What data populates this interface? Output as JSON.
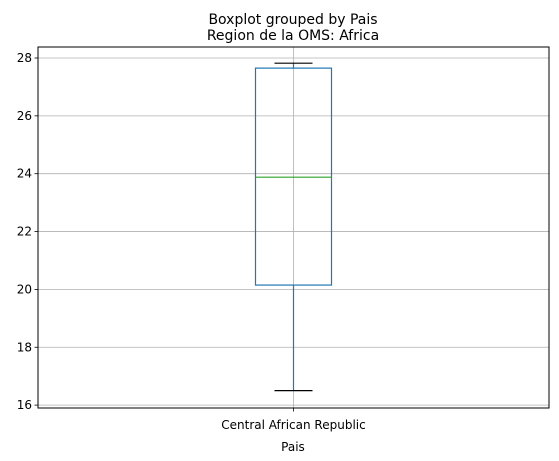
{
  "chart_data": {
    "type": "boxplot",
    "suptitle": "Boxplot grouped by Pais",
    "title": "Region de la OMS: Africa",
    "xlabel": "Pais",
    "ylabel": "",
    "categories": [
      "Central African Republic"
    ],
    "boxes": [
      {
        "category": "Central African Republic",
        "whisker_low": 16.5,
        "q1": 20.15,
        "median": 23.88,
        "q3": 27.65,
        "whisker_high": 27.82
      }
    ],
    "ylim": [
      15.9,
      28.38
    ],
    "yticks": [
      16,
      18,
      20,
      22,
      24,
      26,
      28
    ],
    "grid": true,
    "colors": {
      "box": "#1f77b4",
      "whisker": "#1f77b4",
      "median": "#2ca02c",
      "cap": "#000000",
      "grid": "#b0b0b0"
    }
  }
}
